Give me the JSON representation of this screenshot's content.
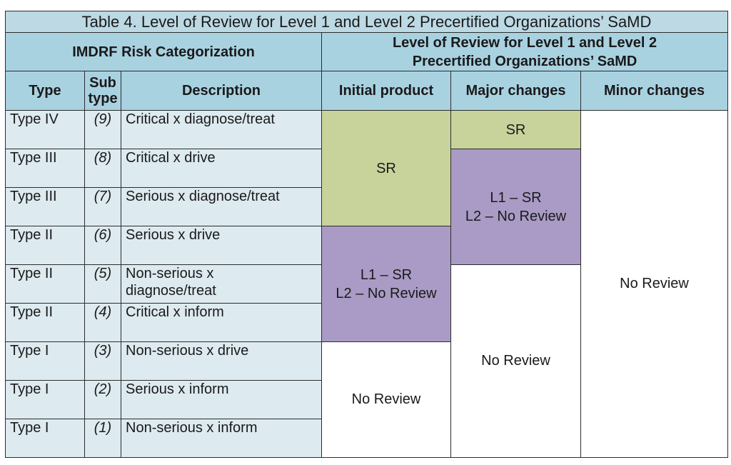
{
  "table": {
    "title": "Table 4.  Level of Review for Level 1 and Level 2 Precertified Organizations’ SaMD",
    "group_left": "IMDRF Risk Categorization",
    "group_right_line1": "Level of Review for Level 1 and Level 2",
    "group_right_line2": "Precertified Organizations’ SaMD",
    "headers": {
      "type": "Type",
      "subtype_line1": "Sub",
      "subtype_line2": "type",
      "description": "Description",
      "initial": "Initial product",
      "major": "Major changes",
      "minor": "Minor changes"
    },
    "rows": [
      {
        "type": "Type IV",
        "subtype": "(9)",
        "description": "Critical x diagnose/treat"
      },
      {
        "type": "Type III",
        "subtype": "(8)",
        "description": "Critical x drive"
      },
      {
        "type": "Type III",
        "subtype": "(7)",
        "description": "Serious x diagnose/treat"
      },
      {
        "type": "Type II",
        "subtype": "(6)",
        "description": "Serious x drive"
      },
      {
        "type": "Type II",
        "subtype": "(5)",
        "description_line1": "Non-serious x",
        "description_line2": "diagnose/treat"
      },
      {
        "type": "Type II",
        "subtype": "(4)",
        "description": "Critical x inform"
      },
      {
        "type": "Type I",
        "subtype": "(3)",
        "description": "Non-serious x drive"
      },
      {
        "type": "Type I",
        "subtype": "(2)",
        "description": "Serious x inform"
      },
      {
        "type": "Type I",
        "subtype": "(1)",
        "description": "Non-serious x inform"
      }
    ],
    "review": {
      "initial_sr": "SR",
      "initial_l1": "L1 – SR",
      "initial_l2": "L2 – No Review",
      "initial_none": "No Review",
      "major_sr": "SR",
      "major_l1": "L1 – SR",
      "major_l2": "L2 – No Review",
      "major_none": "No Review",
      "minor_none": "No Review"
    },
    "colors": {
      "header_blue": "#a9d2e1",
      "row_blue": "#ddeaf0",
      "sr_green": "#c8d39c",
      "l1_purple": "#a99bc5"
    }
  }
}
